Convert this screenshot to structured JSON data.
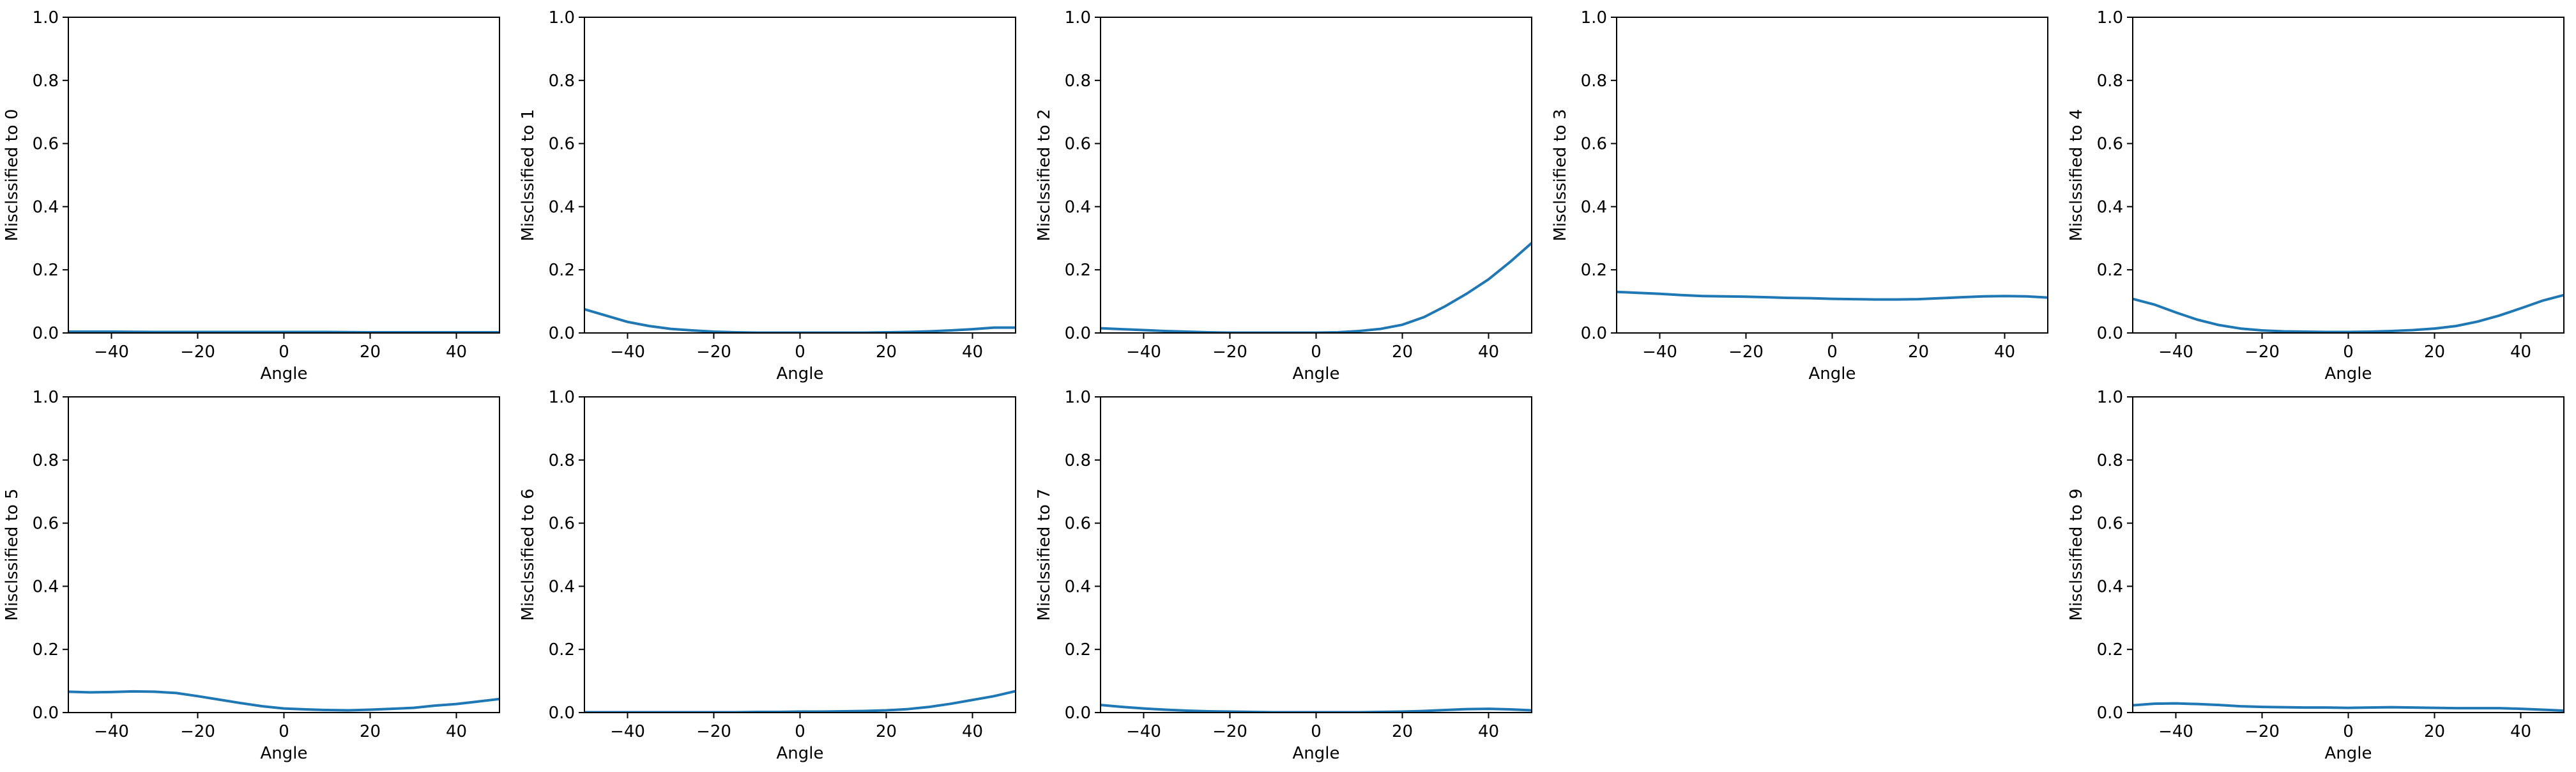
{
  "colors": {
    "line": "#1f77b4",
    "axis": "#000000",
    "background": "#ffffff"
  },
  "chart_data": [
    {
      "panel": 0,
      "type": "line",
      "xlabel": "Angle",
      "ylabel": "Misclssified to 0",
      "xlim": [
        -50,
        50
      ],
      "ylim": [
        0,
        1
      ],
      "xticks": [
        -40,
        -20,
        0,
        20,
        40
      ],
      "yticks": [
        0.0,
        0.2,
        0.4,
        0.6,
        0.8,
        1.0
      ],
      "grid": false,
      "x": [
        -50,
        -40,
        -30,
        -20,
        -10,
        0,
        10,
        20,
        30,
        40,
        50
      ],
      "y": [
        0.004,
        0.004,
        0.003,
        0.003,
        0.003,
        0.003,
        0.003,
        0.002,
        0.002,
        0.002,
        0.002
      ]
    },
    {
      "panel": 1,
      "type": "line",
      "xlabel": "Angle",
      "ylabel": "Misclssified to 1",
      "xlim": [
        -50,
        50
      ],
      "ylim": [
        0,
        1
      ],
      "xticks": [
        -40,
        -20,
        0,
        20,
        40
      ],
      "yticks": [
        0.0,
        0.2,
        0.4,
        0.6,
        0.8,
        1.0
      ],
      "grid": false,
      "x": [
        -50,
        -45,
        -40,
        -35,
        -30,
        -25,
        -20,
        -15,
        -10,
        -5,
        0,
        5,
        10,
        15,
        20,
        25,
        30,
        35,
        40,
        45,
        50
      ],
      "y": [
        0.075,
        0.055,
        0.035,
        0.022,
        0.013,
        0.008,
        0.004,
        0.002,
        0.001,
        0.001,
        0.001,
        0.001,
        0.001,
        0.001,
        0.002,
        0.003,
        0.005,
        0.008,
        0.012,
        0.017,
        0.017
      ]
    },
    {
      "panel": 2,
      "type": "line",
      "xlabel": "Angle",
      "ylabel": "Misclssified to 2",
      "xlim": [
        -50,
        50
      ],
      "ylim": [
        0,
        1
      ],
      "xticks": [
        -40,
        -20,
        0,
        20,
        40
      ],
      "yticks": [
        0.0,
        0.2,
        0.4,
        0.6,
        0.8,
        1.0
      ],
      "grid": false,
      "x": [
        -50,
        -45,
        -40,
        -35,
        -30,
        -25,
        -20,
        -15,
        -10,
        -5,
        0,
        5,
        10,
        15,
        20,
        25,
        30,
        35,
        40,
        45,
        50
      ],
      "y": [
        0.015,
        0.012,
        0.009,
        0.006,
        0.004,
        0.002,
        0.001,
        0.001,
        0.001,
        0.001,
        0.001,
        0.002,
        0.006,
        0.013,
        0.026,
        0.05,
        0.085,
        0.125,
        0.17,
        0.225,
        0.285
      ]
    },
    {
      "panel": 3,
      "type": "line",
      "xlabel": "Angle",
      "ylabel": "Misclssified to 3",
      "xlim": [
        -50,
        50
      ],
      "ylim": [
        0,
        1
      ],
      "xticks": [
        -40,
        -20,
        0,
        20,
        40
      ],
      "yticks": [
        0.0,
        0.2,
        0.4,
        0.6,
        0.8,
        1.0
      ],
      "grid": false,
      "x": [
        -50,
        -45,
        -40,
        -35,
        -30,
        -25,
        -20,
        -15,
        -10,
        -5,
        0,
        5,
        10,
        15,
        20,
        25,
        30,
        35,
        40,
        45,
        50
      ],
      "y": [
        0.13,
        0.127,
        0.124,
        0.12,
        0.117,
        0.116,
        0.115,
        0.113,
        0.111,
        0.11,
        0.108,
        0.107,
        0.106,
        0.106,
        0.107,
        0.11,
        0.113,
        0.116,
        0.117,
        0.116,
        0.112
      ]
    },
    {
      "panel": 4,
      "type": "line",
      "xlabel": "Angle",
      "ylabel": "Misclssified to 4",
      "xlim": [
        -50,
        50
      ],
      "ylim": [
        0,
        1
      ],
      "xticks": [
        -40,
        -20,
        0,
        20,
        40
      ],
      "yticks": [
        0.0,
        0.2,
        0.4,
        0.6,
        0.8,
        1.0
      ],
      "grid": false,
      "x": [
        -50,
        -45,
        -40,
        -35,
        -30,
        -25,
        -20,
        -15,
        -10,
        -5,
        0,
        5,
        10,
        15,
        20,
        25,
        30,
        35,
        40,
        45,
        50
      ],
      "y": [
        0.108,
        0.09,
        0.065,
        0.042,
        0.025,
        0.014,
        0.008,
        0.005,
        0.004,
        0.003,
        0.003,
        0.004,
        0.006,
        0.009,
        0.014,
        0.022,
        0.036,
        0.055,
        0.078,
        0.102,
        0.12
      ]
    },
    {
      "panel": 5,
      "type": "line",
      "xlabel": "Angle",
      "ylabel": "Misclssified to 5",
      "xlim": [
        -50,
        50
      ],
      "ylim": [
        0,
        1
      ],
      "xticks": [
        -40,
        -20,
        0,
        20,
        40
      ],
      "yticks": [
        0.0,
        0.2,
        0.4,
        0.6,
        0.8,
        1.0
      ],
      "grid": false,
      "x": [
        -50,
        -45,
        -40,
        -35,
        -30,
        -25,
        -20,
        -15,
        -10,
        -5,
        0,
        5,
        10,
        15,
        20,
        25,
        30,
        35,
        40,
        45,
        50
      ],
      "y": [
        0.066,
        0.064,
        0.065,
        0.067,
        0.066,
        0.062,
        0.052,
        0.041,
        0.03,
        0.02,
        0.013,
        0.01,
        0.008,
        0.007,
        0.009,
        0.012,
        0.015,
        0.022,
        0.027,
        0.035,
        0.043
      ]
    },
    {
      "panel": 6,
      "type": "line",
      "xlabel": "Angle",
      "ylabel": "Misclssified to 6",
      "xlim": [
        -50,
        50
      ],
      "ylim": [
        0,
        1
      ],
      "xticks": [
        -40,
        -20,
        0,
        20,
        40
      ],
      "yticks": [
        0.0,
        0.2,
        0.4,
        0.6,
        0.8,
        1.0
      ],
      "grid": false,
      "x": [
        -50,
        -45,
        -40,
        -35,
        -30,
        -25,
        -20,
        -15,
        -10,
        -5,
        0,
        5,
        10,
        15,
        20,
        25,
        30,
        35,
        40,
        45,
        50
      ],
      "y": [
        0.001,
        0.001,
        0.001,
        0.001,
        0.001,
        0.001,
        0.001,
        0.001,
        0.002,
        0.002,
        0.003,
        0.003,
        0.004,
        0.005,
        0.007,
        0.011,
        0.018,
        0.028,
        0.04,
        0.052,
        0.068
      ]
    },
    {
      "panel": 7,
      "type": "line",
      "xlabel": "Angle",
      "ylabel": "Misclssified to 7",
      "xlim": [
        -50,
        50
      ],
      "ylim": [
        0,
        1
      ],
      "xticks": [
        -40,
        -20,
        0,
        20,
        40
      ],
      "yticks": [
        0.0,
        0.2,
        0.4,
        0.6,
        0.8,
        1.0
      ],
      "grid": false,
      "x": [
        -50,
        -45,
        -40,
        -35,
        -30,
        -25,
        -20,
        -15,
        -10,
        -5,
        0,
        5,
        10,
        15,
        20,
        25,
        30,
        35,
        40,
        45,
        50
      ],
      "y": [
        0.024,
        0.018,
        0.013,
        0.009,
        0.006,
        0.004,
        0.003,
        0.002,
        0.001,
        0.001,
        0.001,
        0.001,
        0.001,
        0.002,
        0.003,
        0.005,
        0.008,
        0.011,
        0.012,
        0.01,
        0.007
      ]
    },
    {
      "panel": 9,
      "type": "line",
      "xlabel": "Angle",
      "ylabel": "Misclssified to 9",
      "xlim": [
        -50,
        50
      ],
      "ylim": [
        0,
        1
      ],
      "xticks": [
        -40,
        -20,
        0,
        20,
        40
      ],
      "yticks": [
        0.0,
        0.2,
        0.4,
        0.6,
        0.8,
        1.0
      ],
      "grid": false,
      "x": [
        -50,
        -45,
        -40,
        -35,
        -30,
        -25,
        -20,
        -15,
        -10,
        -5,
        0,
        5,
        10,
        15,
        20,
        25,
        30,
        35,
        40,
        45,
        50
      ],
      "y": [
        0.023,
        0.028,
        0.029,
        0.027,
        0.024,
        0.02,
        0.018,
        0.017,
        0.016,
        0.016,
        0.015,
        0.016,
        0.017,
        0.016,
        0.015,
        0.014,
        0.014,
        0.014,
        0.012,
        0.009,
        0.006
      ]
    }
  ]
}
